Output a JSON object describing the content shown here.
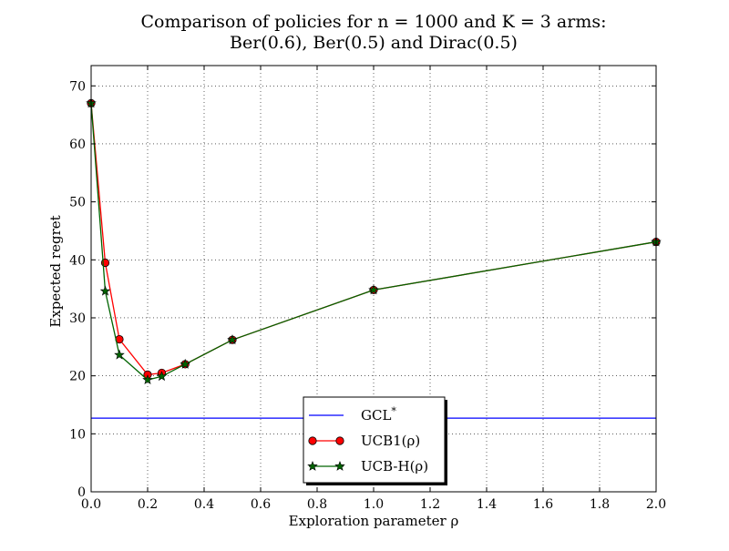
{
  "chart_data": {
    "type": "line",
    "title_lines": [
      "Comparison of policies for n = 1000 and K = 3 arms:",
      "Ber(0.6), Ber(0.5) and Dirac(0.5)"
    ],
    "xlabel": "Exploration parameter ρ",
    "ylabel": "Expected regret",
    "xlim": [
      0.0,
      2.0
    ],
    "ylim": [
      0,
      73.5
    ],
    "xticks": [
      0.0,
      0.2,
      0.4,
      0.6,
      0.8,
      1.0,
      1.2,
      1.4,
      1.6,
      1.8,
      2.0
    ],
    "xtick_labels": [
      "0.0",
      "0.2",
      "0.4",
      "0.6",
      "0.8",
      "1.0",
      "1.2",
      "1.4",
      "1.6",
      "1.8",
      "2.0"
    ],
    "yticks": [
      0,
      10,
      20,
      30,
      40,
      50,
      60,
      70
    ],
    "ytick_labels": [
      "0",
      "10",
      "20",
      "30",
      "40",
      "50",
      "60",
      "70"
    ],
    "grid": true,
    "legend_position": "lower-center",
    "series": [
      {
        "name": "GCL*",
        "legend_label": "GCL",
        "legend_superscript": "*",
        "kind": "hline",
        "y": 12.7,
        "color": "#0000ff",
        "marker": "none"
      },
      {
        "name": "UCB1(ρ)",
        "legend_label": "UCB1(ρ)",
        "kind": "line",
        "color": "#ff0000",
        "marker_fill": "#ff0000",
        "marker": "circle",
        "x": [
          0.0,
          0.05,
          0.1,
          0.2,
          0.25,
          0.333,
          0.5,
          1.0,
          2.0
        ],
        "y": [
          67.0,
          39.5,
          26.3,
          20.2,
          20.5,
          22.0,
          26.2,
          34.8,
          43.1
        ]
      },
      {
        "name": "UCB-H(ρ)",
        "legend_label": "UCB-H(ρ)",
        "kind": "line",
        "color": "#006400",
        "marker_fill": "#006400",
        "marker": "star",
        "x": [
          0.0,
          0.05,
          0.1,
          0.2,
          0.25,
          0.333,
          0.5,
          1.0,
          2.0
        ],
        "y": [
          67.0,
          34.6,
          23.6,
          19.3,
          19.9,
          22.0,
          26.2,
          34.8,
          43.1
        ]
      }
    ]
  }
}
